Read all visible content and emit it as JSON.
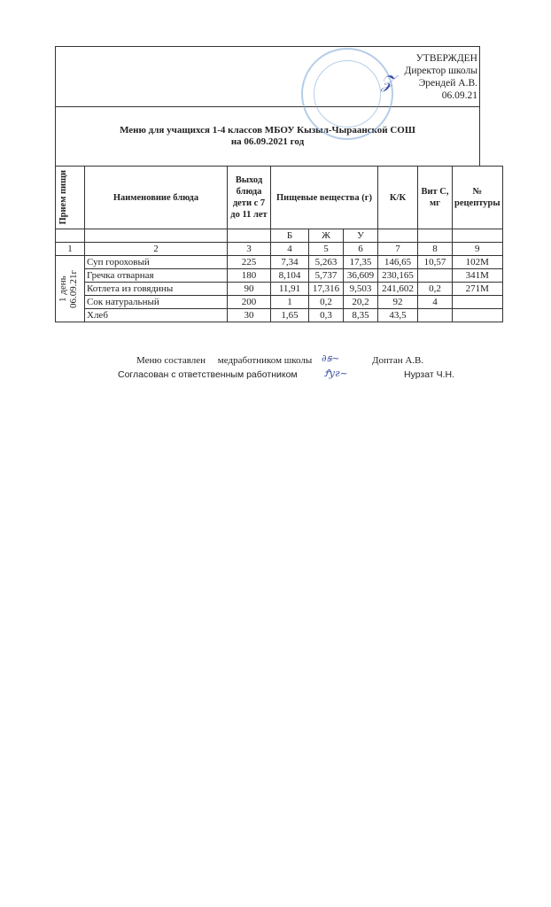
{
  "approval": {
    "status": "УТВЕРЖДЕН",
    "position": "Директор школы",
    "name": "Эрендей А.В.",
    "date": "06.09.21"
  },
  "title": {
    "line1": "Меню для учащихся 1-4 классов МБОУ Кызыл-Чыраанской СОШ",
    "line2": "на 06.09.2021 год"
  },
  "table": {
    "headers": {
      "meal": "Прием пищи",
      "dish": "Наименовние блюда",
      "yield": "Выход блюда дети с 7 до 11 лет",
      "nutrients": "Пищевые вещества (г)",
      "kcal": "К/К",
      "vitc": "Вит С, мг",
      "recipe": "№ рецептуры"
    },
    "subheaders": [
      "Б",
      "Ж",
      "У"
    ],
    "column_numbers": [
      "1",
      "2",
      "3",
      "4",
      "5",
      "6",
      "7",
      "8",
      "9"
    ],
    "meal_label": "1 день 06.09.21г",
    "rows": [
      {
        "dish": "Суп гороховый",
        "yield": "225",
        "b": "7,34",
        "zh": "5,263",
        "u": "17,35",
        "kcal": "146,65",
        "vitc": "10,57",
        "recipe": "102М"
      },
      {
        "dish": "Гречка отварная",
        "yield": "180",
        "b": "8,104",
        "zh": "5,737",
        "u": "36,609",
        "kcal": "230,165",
        "vitc": "",
        "recipe": "341М"
      },
      {
        "dish": "Котлета из говядины",
        "yield": "90",
        "b": "11,91",
        "zh": "17,316",
        "u": "9,503",
        "kcal": "241,602",
        "vitc": "0,2",
        "recipe": "271М"
      },
      {
        "dish": "Сок натуральный",
        "yield": "200",
        "b": "1",
        "zh": "0,2",
        "u": "20,2",
        "kcal": "92",
        "vitc": "4",
        "recipe": ""
      },
      {
        "dish": "Хлеб",
        "yield": "30",
        "b": "1,65",
        "zh": "0,3",
        "u": "8,35",
        "kcal": "43,5",
        "vitc": "",
        "recipe": ""
      }
    ]
  },
  "footer": {
    "composed_label": "Меню составлен",
    "composed_by": "медработником школы",
    "composer_name": "Доптан А.В.",
    "agreed_label": "Согласован с ответственным работником",
    "agreed_name": "Нурзат Ч.Н."
  },
  "colors": {
    "stamp": "#7aa6d6",
    "signature": "#3b4fa0"
  }
}
